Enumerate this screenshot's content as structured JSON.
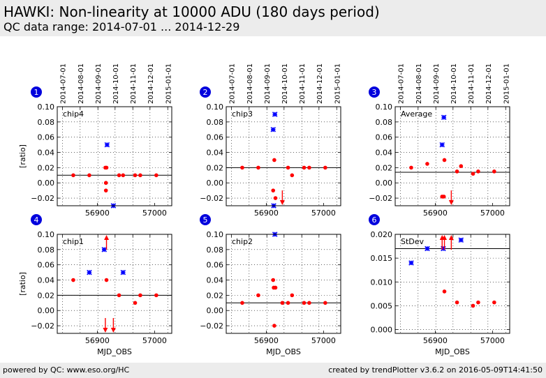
{
  "header": {
    "title": "HAWKI: Non-linearity at 10000 ADU (180 days period)",
    "subtitle": "QC data range: 2014-07-01 ... 2014-12-29"
  },
  "footer": {
    "left": "powered by QC: www.eso.org/HC",
    "right": "created by trendPlotter v3.6.2 on 2016-05-09T14:41:50"
  },
  "colors": {
    "badge": "#0000dd",
    "red": "#ff0000",
    "blue": "#0000ff",
    "line": "#000000"
  },
  "shared": {
    "date_ticks": [
      "2014-07-01",
      "2014-08-01",
      "2014-09-01",
      "2014-10-01",
      "2014-11-01",
      "2014-12-01",
      "2015-01-01"
    ],
    "date_mjd": [
      56839,
      56870,
      56901,
      56931,
      56962,
      56992,
      57023
    ],
    "x_ticks": [
      56900,
      57000
    ],
    "x_tick_labels": [
      "56900",
      "57000"
    ],
    "xlim": [
      56830,
      57030
    ],
    "xlabel": "MJD_OBS",
    "ylabel": "[ratio]"
  },
  "chart_data": [
    {
      "type": "scatter",
      "panel_number": "1",
      "name": "chip4",
      "ylim": [
        -0.03,
        0.1
      ],
      "y_ticks": [
        -0.02,
        0.0,
        0.02,
        0.04,
        0.06,
        0.08,
        0.1
      ],
      "y_tick_labels": [
        "−0.02",
        "0.00",
        "0.02",
        "0.04",
        "0.06",
        "0.08",
        "0.10"
      ],
      "reference_line": 0.01,
      "red_points": [
        [
          56858,
          0.01
        ],
        [
          56886,
          0.01
        ],
        [
          56914,
          0.02
        ],
        [
          56916,
          0.02
        ],
        [
          56915,
          0.0
        ],
        [
          56915,
          -0.01
        ],
        [
          56938,
          0.01
        ],
        [
          56945,
          0.01
        ],
        [
          56966,
          0.01
        ],
        [
          56975,
          0.01
        ],
        [
          57003,
          0.01
        ]
      ],
      "blue_points": [
        [
          56917,
          0.05
        ],
        [
          56928,
          -0.03
        ]
      ],
      "arrows_up": [],
      "arrows_down": []
    },
    {
      "type": "scatter",
      "panel_number": "2",
      "name": "chip3",
      "ylim": [
        -0.03,
        0.1
      ],
      "y_ticks": [
        -0.02,
        0.0,
        0.02,
        0.04,
        0.06,
        0.08,
        0.1
      ],
      "y_tick_labels": [
        "−0.02",
        "0.00",
        "0.02",
        "0.04",
        "0.06",
        "0.08",
        "0.10"
      ],
      "reference_line": 0.02,
      "red_points": [
        [
          56858,
          0.02
        ],
        [
          56886,
          0.02
        ],
        [
          56914,
          0.03
        ],
        [
          56912,
          -0.01
        ],
        [
          56916,
          -0.02
        ],
        [
          56938,
          0.02
        ],
        [
          56945,
          0.01
        ],
        [
          56966,
          0.02
        ],
        [
          56975,
          0.02
        ],
        [
          57003,
          0.02
        ]
      ],
      "blue_points": [
        [
          56912,
          0.07
        ],
        [
          56915,
          0.09
        ],
        [
          56913,
          -0.03
        ]
      ],
      "arrows_up": [],
      "arrows_down": [
        56928
      ]
    },
    {
      "type": "scatter",
      "panel_number": "3",
      "name": "Average",
      "ylim": [
        -0.03,
        0.1
      ],
      "y_ticks": [
        -0.02,
        0.0,
        0.02,
        0.04,
        0.06,
        0.08,
        0.1
      ],
      "y_tick_labels": [
        "−0.02",
        "0.00",
        "0.02",
        "0.04",
        "0.06",
        "0.08",
        "0.10"
      ],
      "reference_line": 0.014,
      "red_points": [
        [
          56858,
          0.02
        ],
        [
          56886,
          0.025
        ],
        [
          56912,
          -0.018
        ],
        [
          56915,
          -0.018
        ],
        [
          56916,
          0.03
        ],
        [
          56938,
          0.015
        ],
        [
          56945,
          0.022
        ],
        [
          56966,
          0.012
        ],
        [
          56975,
          0.015
        ],
        [
          57003,
          0.015
        ]
      ],
      "blue_points": [
        [
          56912,
          0.05
        ],
        [
          56915,
          0.086
        ]
      ],
      "arrows_up": [],
      "arrows_down": [
        56928
      ]
    },
    {
      "type": "scatter",
      "panel_number": "4",
      "name": "chip1",
      "ylim": [
        -0.03,
        0.1
      ],
      "y_ticks": [
        -0.02,
        0.0,
        0.02,
        0.04,
        0.06,
        0.08,
        0.1
      ],
      "y_tick_labels": [
        "−0.02",
        "0.00",
        "0.02",
        "0.04",
        "0.06",
        "0.08",
        "0.10"
      ],
      "reference_line": 0.02,
      "red_points": [
        [
          56858,
          0.04
        ],
        [
          56916,
          0.04
        ],
        [
          56938,
          0.02
        ],
        [
          56966,
          0.01
        ],
        [
          56975,
          0.02
        ],
        [
          57003,
          0.02
        ]
      ],
      "blue_points": [
        [
          56886,
          0.05
        ],
        [
          56912,
          0.08
        ],
        [
          56945,
          0.05
        ]
      ],
      "arrows_up": [
        56916
      ],
      "arrows_down": [
        56914,
        56928
      ]
    },
    {
      "type": "scatter",
      "panel_number": "5",
      "name": "chip2",
      "ylim": [
        -0.03,
        0.1
      ],
      "y_ticks": [
        -0.02,
        0.0,
        0.02,
        0.04,
        0.06,
        0.08,
        0.1
      ],
      "y_tick_labels": [
        "−0.02",
        "0.00",
        "0.02",
        "0.04",
        "0.06",
        "0.08",
        "0.10"
      ],
      "reference_line": 0.01,
      "red_points": [
        [
          56858,
          0.01
        ],
        [
          56886,
          0.02
        ],
        [
          56912,
          0.04
        ],
        [
          56913,
          0.03
        ],
        [
          56916,
          0.03
        ],
        [
          56914,
          -0.02
        ],
        [
          56928,
          0.01
        ],
        [
          56938,
          0.01
        ],
        [
          56945,
          0.02
        ],
        [
          56966,
          0.01
        ],
        [
          56975,
          0.01
        ],
        [
          57003,
          0.01
        ]
      ],
      "blue_points": [
        [
          56915,
          0.1
        ]
      ],
      "arrows_up": [],
      "arrows_down": []
    },
    {
      "type": "scatter",
      "panel_number": "6",
      "name": "StDev",
      "ylim": [
        -0.0008,
        0.02
      ],
      "y_ticks": [
        0.0,
        0.005,
        0.01,
        0.015,
        0.02
      ],
      "y_tick_labels": [
        "0.000",
        "0.005",
        "0.010",
        "0.015",
        "0.020"
      ],
      "reference_line": 0.017,
      "red_points": [
        [
          56916,
          0.008
        ],
        [
          56938,
          0.0057
        ],
        [
          56966,
          0.005
        ],
        [
          56975,
          0.0057
        ],
        [
          57003,
          0.0057
        ]
      ],
      "blue_points": [
        [
          56858,
          0.014
        ],
        [
          56886,
          0.017
        ],
        [
          56914,
          0.017
        ],
        [
          56945,
          0.0188
        ]
      ],
      "arrows_up": [
        56912,
        56916,
        56928
      ],
      "arrows_down": []
    }
  ]
}
